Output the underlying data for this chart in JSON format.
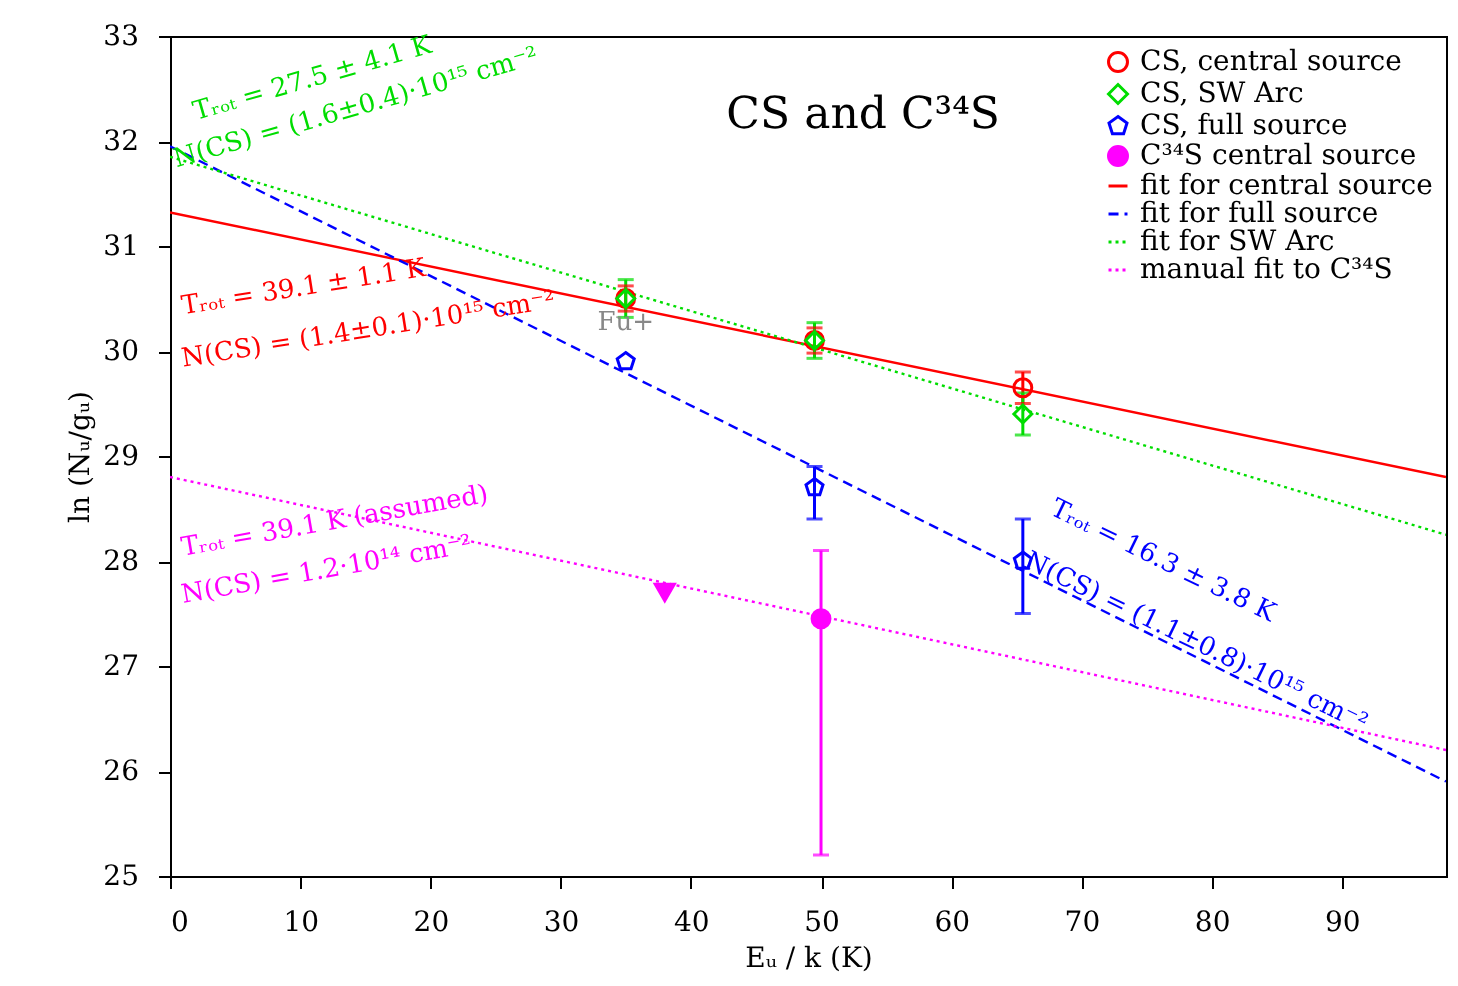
{
  "chart_data": {
    "type": "scatter",
    "title": "CS and C³⁴S",
    "xlabel": "Eᵤ / k (K)",
    "ylabel": "ln (Nᵤ/gᵤ)",
    "xlim": [
      0,
      98
    ],
    "xticks": [
      0,
      10,
      20,
      30,
      40,
      50,
      60,
      70,
      80,
      90
    ],
    "ylim": [
      25,
      33
    ],
    "yticks": [
      25,
      26,
      27,
      28,
      29,
      30,
      31,
      32,
      33
    ],
    "legend": "top right",
    "grid": false,
    "series": [
      {
        "name": "CS, central source",
        "type": "scatter",
        "marker": "circle",
        "color": "#ff0000",
        "x": [
          35,
          49.5,
          65.5
        ],
        "values": [
          30.5,
          30.1,
          29.65
        ],
        "errors": [
          0.12,
          0.12,
          0.15
        ]
      },
      {
        "name": "CS, SW Arc",
        "type": "scatter",
        "marker": "diamond",
        "color": "#00dd00",
        "x": [
          35,
          49.5,
          65.5
        ],
        "values": [
          30.5,
          30.1,
          29.4
        ],
        "errors": [
          0.18,
          0.17,
          0.2
        ]
      },
      {
        "name": "CS, full source",
        "type": "scatter",
        "color": "#0000ff",
        "x": [
          35,
          49.5,
          65.5
        ],
        "values": [
          29.9,
          28.7,
          28.0
        ],
        "errors": [
          null,
          [
            28.4,
            28.9
          ],
          [
            27.5,
            28.4
          ]
        ]
      },
      {
        "name": "C³⁴S central source",
        "type": "scatter",
        "marker": "circle",
        "color": "#ff00ff",
        "x": [
          50
        ],
        "values": [
          27.45
        ],
        "errors": [
          [
            25.2,
            28.1
          ]
        ]
      },
      {
        "name": "fit for central source",
        "type": "line",
        "line_style": "solid",
        "color": "#ff0000",
        "x": [
          0,
          98
        ],
        "values": [
          31.32,
          28.8
        ]
      },
      {
        "name": "fit for full source",
        "type": "line",
        "line_style": "dashed",
        "color": "#0000ff",
        "x": [
          0,
          98
        ],
        "values": [
          31.95,
          25.9
        ]
      },
      {
        "name": "fit for SW Arc",
        "type": "line",
        "line_style": "dotted",
        "color": "#00dd00",
        "x": [
          0,
          98
        ],
        "values": [
          31.85,
          28.25
        ]
      },
      {
        "name": "manual fit to C³⁴S",
        "type": "line",
        "line_style": "dotted",
        "color": "#ff00ff",
        "x": [
          0,
          98
        ],
        "values": [
          28.8,
          26.2
        ]
      },
      {
        "type": "scatter",
        "marker": "triangle",
        "color": "#ff00ff",
        "x": [
          38
        ],
        "values": [
          27.7
        ]
      }
    ],
    "annotations": [
      "Tᵣₒₜ = 27.5 ± 4.1 K",
      "N(CS) = (1.6±0.4)·10¹⁵ cm⁻²",
      "Tᵣₒₜ = 39.1 ± 1.1 K",
      "N(CS) = (1.4±0.1)·10¹⁵ cm⁻²",
      "Tᵣₒₜ = 39.1 K (assumed)",
      "N(CS) = 1.2·10¹⁴ cm⁻²",
      "Tᵣₒₜ = 16.3 ± 3.8 K",
      "N(CS) = (1.1±0.8)·10¹⁵ cm⁻²",
      "Fu+"
    ]
  }
}
